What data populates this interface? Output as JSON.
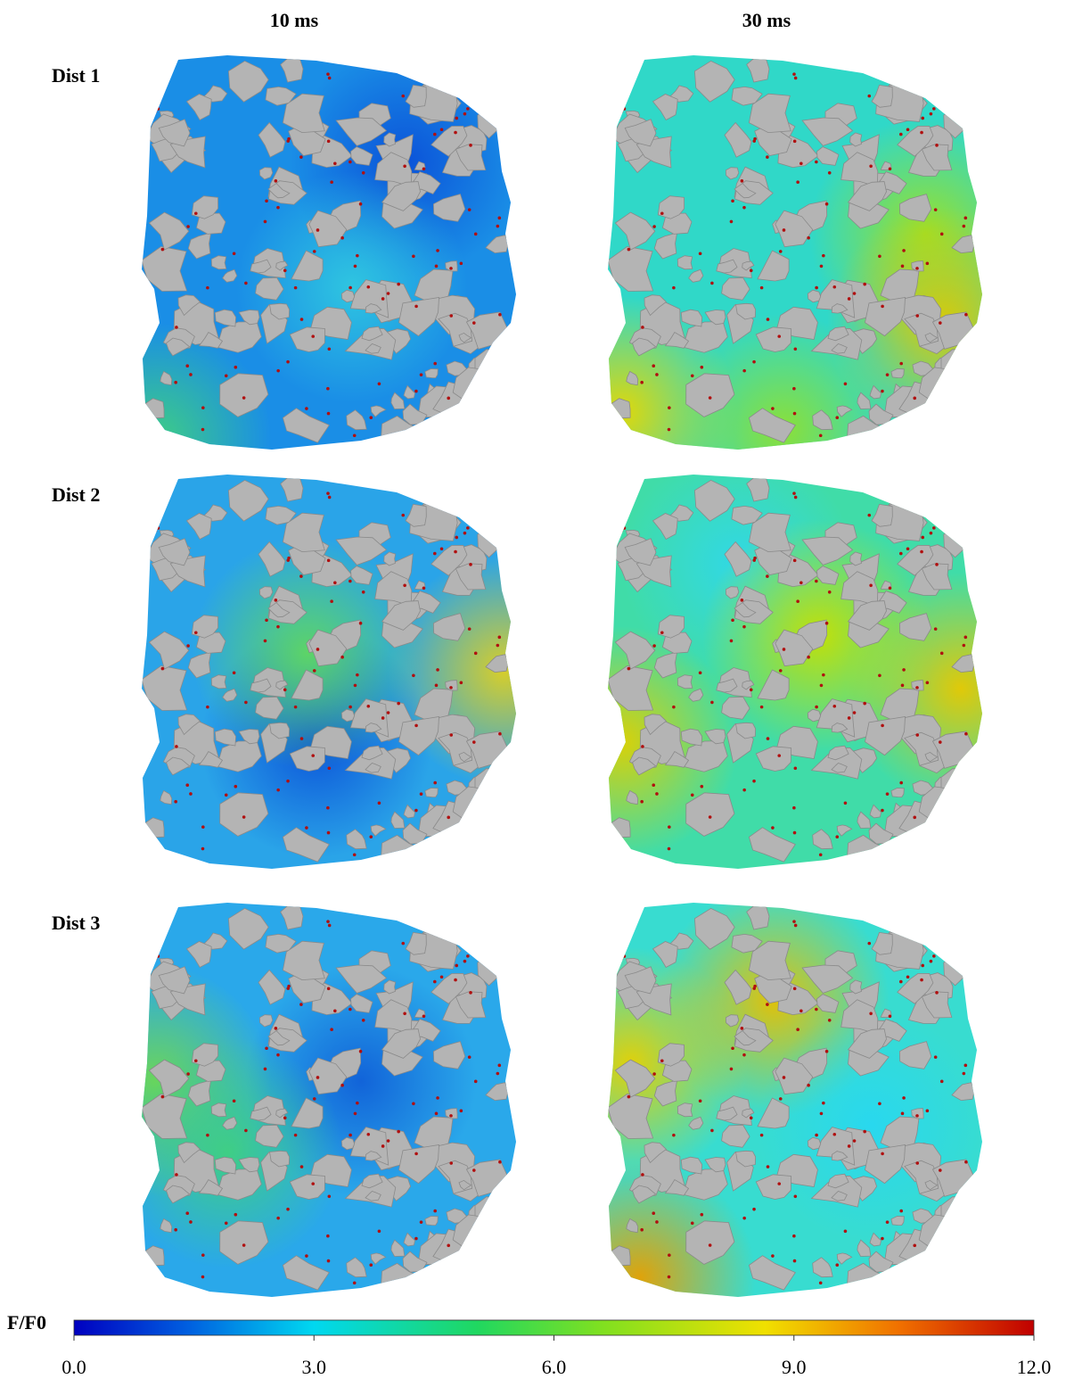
{
  "columns": [
    "10 ms",
    "30 ms"
  ],
  "rows": [
    "Dist 1",
    "Dist 2",
    "Dist 3"
  ],
  "colorbar": {
    "label": "F/F0",
    "lim": [
      0,
      12
    ],
    "ticks": [
      {
        "value": 0,
        "label": "0.0"
      },
      {
        "value": 3,
        "label": "3.0"
      },
      {
        "value": 6,
        "label": "6.0"
      },
      {
        "value": 9,
        "label": "9.0"
      },
      {
        "value": 12,
        "label": "12.0"
      }
    ]
  }
}
